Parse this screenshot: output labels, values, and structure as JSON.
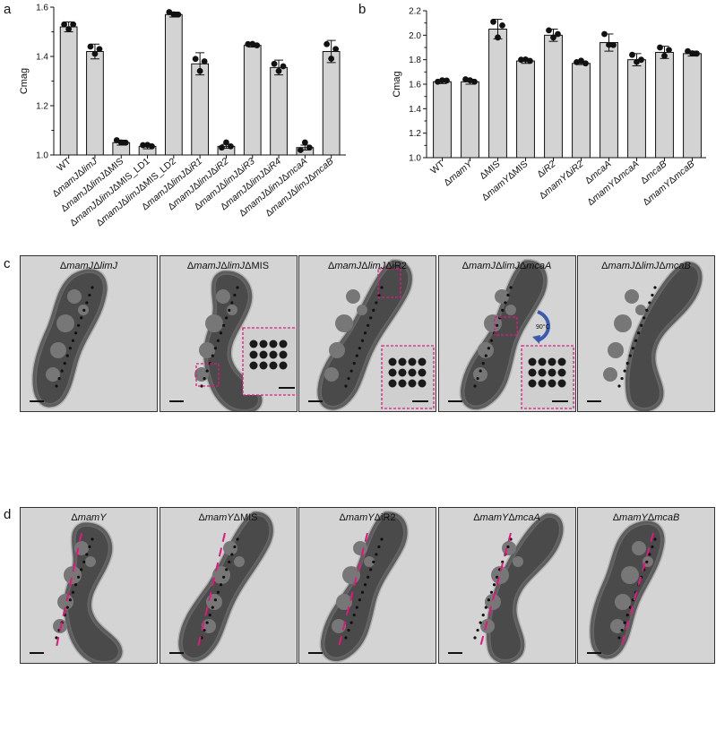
{
  "panel_labels": {
    "a": "a",
    "b": "b",
    "c": "c",
    "d": "d"
  },
  "chart_data": [
    {
      "type": "bar",
      "panel": "a",
      "ylabel": "Cmag",
      "ylim": [
        1.0,
        1.6
      ],
      "yticks": [
        "1.0",
        "1.2",
        "1.4",
        "1.6"
      ],
      "categories": [
        "WT",
        "ΔmamJΔlimJ",
        "ΔmamJΔlimJΔMIS",
        "ΔmamJΔlimJΔMIS_LD1",
        "ΔmamJΔlimJΔMIS_LD2",
        "ΔmamJΔlimJΔiR1",
        "ΔmamJΔlimJΔiR2",
        "ΔmamJΔlimJΔiR3",
        "ΔmamJΔlimJΔiR4",
        "ΔmamJΔlimJΔmcaA",
        "ΔmamJΔlimJΔmcaB"
      ],
      "values": [
        1.52,
        1.42,
        1.05,
        1.035,
        1.57,
        1.37,
        1.035,
        1.445,
        1.355,
        1.03,
        1.42
      ],
      "errors": [
        0.02,
        0.03,
        0.01,
        0.01,
        0.01,
        0.045,
        0.008,
        0.007,
        0.03,
        0.01,
        0.045
      ],
      "points": [
        [
          1.53,
          1.5,
          1.53
        ],
        [
          1.44,
          1.4,
          1.43
        ],
        [
          1.06,
          1.04,
          1.05
        ],
        [
          1.04,
          1.03,
          1.035
        ],
        [
          1.58,
          1.56,
          1.57
        ],
        [
          1.39,
          1.33,
          1.38
        ],
        [
          1.03,
          1.04,
          1.035
        ],
        [
          1.45,
          1.44,
          1.445
        ],
        [
          1.37,
          1.33,
          1.36
        ],
        [
          1.02,
          1.04,
          1.03
        ],
        [
          1.45,
          1.38,
          1.43
        ]
      ],
      "grid": false,
      "bar_color": "#d3d3d3"
    },
    {
      "type": "bar",
      "panel": "b",
      "ylabel": "Cmag",
      "ylim": [
        1.0,
        2.2
      ],
      "yticks": [
        "1.0",
        "1.2",
        "1.4",
        "1.6",
        "1.8",
        "2.0",
        "2.2"
      ],
      "categories": [
        "WT",
        "ΔmamY",
        "ΔMIS",
        "ΔmamYΔMIS",
        "ΔiR2",
        "ΔmamYΔiR2",
        "ΔmcaA",
        "ΔmamYΔmcaA",
        "ΔmcaB",
        "ΔmamYΔmcaB"
      ],
      "values": [
        1.62,
        1.62,
        2.05,
        1.79,
        2.0,
        1.77,
        1.94,
        1.8,
        1.86,
        1.85
      ],
      "errors": [
        0.015,
        0.02,
        0.08,
        0.02,
        0.05,
        0.01,
        0.07,
        0.05,
        0.05,
        0.02
      ],
      "points": [
        [
          1.62,
          1.61,
          1.63
        ],
        [
          1.64,
          1.61,
          1.62
        ],
        [
          2.11,
          1.96,
          2.08
        ],
        [
          1.8,
          1.78,
          1.79
        ],
        [
          2.04,
          1.96,
          2.01
        ],
        [
          1.78,
          1.77,
          1.77
        ],
        [
          2.01,
          1.9,
          1.92
        ],
        [
          1.84,
          1.76,
          1.8
        ],
        [
          1.9,
          1.81,
          1.88
        ],
        [
          1.87,
          1.83,
          1.85
        ]
      ],
      "grid": false,
      "bar_color": "#d3d3d3"
    }
  ],
  "row_c": {
    "panels": [
      {
        "prefix": "Δ",
        "label": "mamJΔlimJ",
        "italic_parts": [
          [
            "Δ",
            false
          ],
          [
            "mamJ",
            true
          ],
          [
            "Δ",
            false
          ],
          [
            "limJ",
            true
          ]
        ]
      },
      {
        "label": "ΔmamJΔlimJΔMIS",
        "italic_parts": [
          [
            "Δ",
            false
          ],
          [
            "mamJ",
            true
          ],
          [
            "Δ",
            false
          ],
          [
            "limJ",
            true
          ],
          [
            "ΔMIS",
            false
          ]
        ]
      },
      {
        "label": "ΔmamJΔlimJΔiR2",
        "italic_parts": [
          [
            "Δ",
            false
          ],
          [
            "mamJ",
            true
          ],
          [
            "Δ",
            false
          ],
          [
            "limJ",
            true
          ],
          [
            "ΔiR2",
            false
          ]
        ]
      },
      {
        "label": "ΔmamJΔlimJΔmcaA",
        "italic_parts": [
          [
            "Δ",
            false
          ],
          [
            "mamJ",
            true
          ],
          [
            "Δ",
            false
          ],
          [
            "limJ",
            true
          ],
          [
            "Δ",
            false
          ],
          [
            "mcaA",
            true
          ]
        ]
      },
      {
        "label": "ΔmamJΔlimJΔmcaB",
        "italic_parts": [
          [
            "Δ",
            false
          ],
          [
            "mamJ",
            true
          ],
          [
            "Δ",
            false
          ],
          [
            "limJ",
            true
          ],
          [
            "Δ",
            false
          ],
          [
            "mcaB",
            true
          ]
        ]
      }
    ],
    "rotation_label": "90°C",
    "inset_color": "#e0197d"
  },
  "row_d": {
    "panels": [
      {
        "label": "ΔmamY",
        "italic_parts": [
          [
            "Δ",
            false
          ],
          [
            "mamY",
            true
          ]
        ]
      },
      {
        "label": "ΔmamYΔMIS",
        "italic_parts": [
          [
            "Δ",
            false
          ],
          [
            "mamY",
            true
          ],
          [
            "ΔMIS",
            false
          ]
        ]
      },
      {
        "label": "ΔmamYΔiR2",
        "italic_parts": [
          [
            "Δ",
            false
          ],
          [
            "mamY",
            true
          ],
          [
            "ΔiR2",
            false
          ]
        ]
      },
      {
        "label": "ΔmamYΔmcaA",
        "italic_parts": [
          [
            "Δ",
            false
          ],
          [
            "mamY",
            true
          ],
          [
            "Δ",
            false
          ],
          [
            "mcaA",
            true
          ]
        ]
      },
      {
        "label": "ΔmamYΔmcaB",
        "italic_parts": [
          [
            "Δ",
            false
          ],
          [
            "mamY",
            true
          ],
          [
            "Δ",
            false
          ],
          [
            "mcaB",
            true
          ]
        ]
      }
    ],
    "dash_color": "#e0197d"
  }
}
